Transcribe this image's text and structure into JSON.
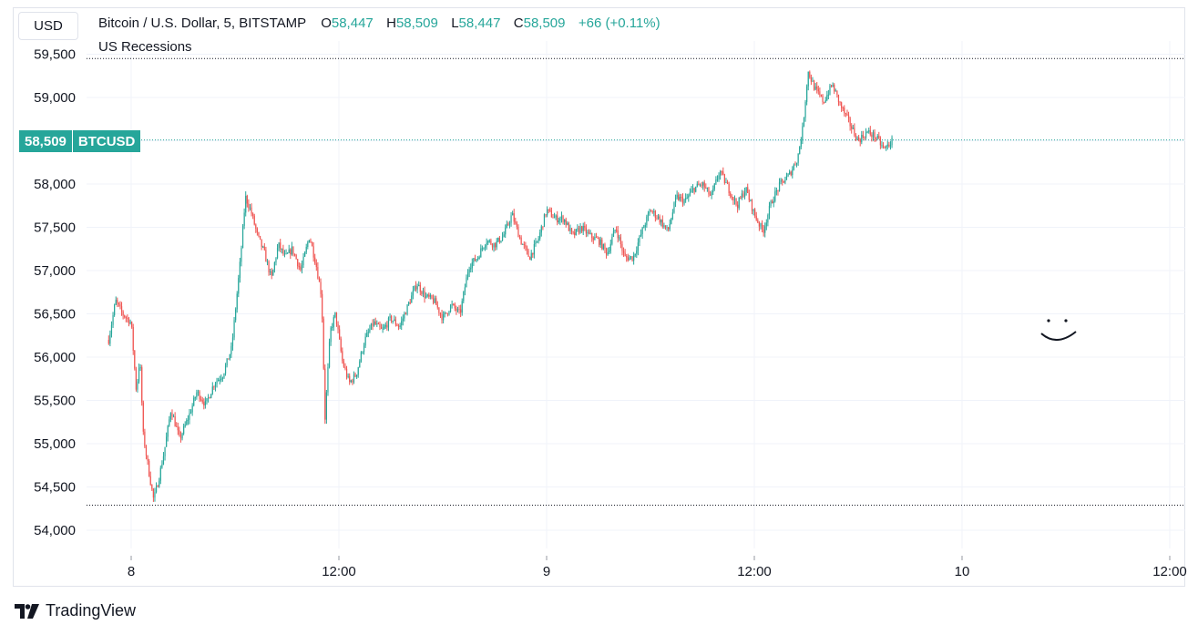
{
  "toolbar": {
    "currency": "USD"
  },
  "legend": {
    "symbol": "Bitcoin / U.S. Dollar, 5, BITSTAMP",
    "open_label": "O",
    "open": "58,447",
    "high_label": "H",
    "high": "58,509",
    "low_label": "L",
    "low": "58,447",
    "close_label": "C",
    "close": "58,509",
    "change": "+66 (+0.11%)",
    "indicator": "US Recessions"
  },
  "price_tag": {
    "value": "58,509",
    "ticker": "BTCUSD"
  },
  "brand": {
    "name": "TradingView"
  },
  "colors": {
    "up": "#26a69a",
    "down": "#ef5350",
    "grid": "#f0f3fa",
    "text": "#131722"
  },
  "chart_data": {
    "type": "candlestick",
    "y_ticks": [
      "54,000",
      "54,500",
      "55,000",
      "55,500",
      "56,000",
      "56,500",
      "57,000",
      "57,500",
      "58,000",
      "58,500",
      "59,000",
      "59,500"
    ],
    "y_tick_values": [
      54000,
      54500,
      55000,
      55500,
      56000,
      56500,
      57000,
      57500,
      58000,
      58500,
      59000,
      59500
    ],
    "ylim": [
      53900,
      59550
    ],
    "x_ticks": [
      "8",
      "12:00",
      "9",
      "12:00",
      "10",
      "12:00"
    ],
    "x_tick_hours": [
      0,
      12,
      24,
      36,
      48,
      60
    ],
    "xlim_hours": [
      -1.3,
      60.5
    ],
    "high_line": 59450,
    "low_line": 54290,
    "last_price": 58509,
    "close_path": [
      [
        -1.3,
        56200
      ],
      [
        -0.9,
        56650
      ],
      [
        -0.5,
        56500
      ],
      [
        0,
        56400
      ],
      [
        0.3,
        55600
      ],
      [
        0.5,
        56000
      ],
      [
        0.7,
        55100
      ],
      [
        1.0,
        54700
      ],
      [
        1.3,
        54350
      ],
      [
        1.6,
        54600
      ],
      [
        1.9,
        54900
      ],
      [
        2.3,
        55400
      ],
      [
        2.8,
        55050
      ],
      [
        3.3,
        55300
      ],
      [
        3.8,
        55600
      ],
      [
        4.3,
        55450
      ],
      [
        4.8,
        55700
      ],
      [
        5.3,
        55800
      ],
      [
        5.8,
        56100
      ],
      [
        6.3,
        57100
      ],
      [
        6.6,
        57850
      ],
      [
        6.9,
        57700
      ],
      [
        7.3,
        57400
      ],
      [
        7.7,
        57200
      ],
      [
        8.1,
        56900
      ],
      [
        8.5,
        57300
      ],
      [
        8.9,
        57150
      ],
      [
        9.3,
        57250
      ],
      [
        9.8,
        57000
      ],
      [
        10.3,
        57400
      ],
      [
        10.7,
        57050
      ],
      [
        11.0,
        56700
      ],
      [
        11.2,
        55300
      ],
      [
        11.5,
        56300
      ],
      [
        11.8,
        56500
      ],
      [
        12.2,
        55950
      ],
      [
        12.6,
        55700
      ],
      [
        13.0,
        55800
      ],
      [
        13.5,
        56200
      ],
      [
        14.0,
        56400
      ],
      [
        14.5,
        56300
      ],
      [
        15.0,
        56450
      ],
      [
        15.5,
        56350
      ],
      [
        16.0,
        56600
      ],
      [
        16.5,
        56850
      ],
      [
        17.0,
        56700
      ],
      [
        17.5,
        56650
      ],
      [
        18.0,
        56450
      ],
      [
        18.5,
        56600
      ],
      [
        19.0,
        56500
      ],
      [
        19.5,
        57050
      ],
      [
        20.0,
        57150
      ],
      [
        20.5,
        57350
      ],
      [
        21.0,
        57300
      ],
      [
        21.5,
        57400
      ],
      [
        22.0,
        57650
      ],
      [
        22.5,
        57350
      ],
      [
        23.0,
        57150
      ],
      [
        23.5,
        57350
      ],
      [
        24.0,
        57700
      ],
      [
        24.5,
        57600
      ],
      [
        25.0,
        57600
      ],
      [
        25.5,
        57400
      ],
      [
        26.0,
        57500
      ],
      [
        26.5,
        57400
      ],
      [
        27.0,
        57350
      ],
      [
        27.5,
        57200
      ],
      [
        28.0,
        57500
      ],
      [
        28.5,
        57150
      ],
      [
        29.0,
        57150
      ],
      [
        29.5,
        57450
      ],
      [
        30.0,
        57700
      ],
      [
        30.5,
        57600
      ],
      [
        31.0,
        57450
      ],
      [
        31.5,
        57850
      ],
      [
        32.0,
        57800
      ],
      [
        32.5,
        57950
      ],
      [
        33.0,
        58000
      ],
      [
        33.5,
        57850
      ],
      [
        34.0,
        58150
      ],
      [
        34.5,
        57950
      ],
      [
        35.0,
        57750
      ],
      [
        35.5,
        57950
      ],
      [
        36.0,
        57650
      ],
      [
        36.5,
        57450
      ],
      [
        37.0,
        57800
      ],
      [
        37.5,
        58000
      ],
      [
        38.0,
        58100
      ],
      [
        38.5,
        58300
      ],
      [
        38.8,
        58650
      ],
      [
        39.1,
        59300
      ],
      [
        39.5,
        59100
      ],
      [
        40.0,
        58950
      ],
      [
        40.5,
        59150
      ],
      [
        41.0,
        58900
      ],
      [
        41.5,
        58700
      ],
      [
        42.0,
        58500
      ],
      [
        42.5,
        58600
      ],
      [
        43.0,
        58550
      ],
      [
        43.5,
        58400
      ],
      [
        44.0,
        58509
      ]
    ]
  }
}
